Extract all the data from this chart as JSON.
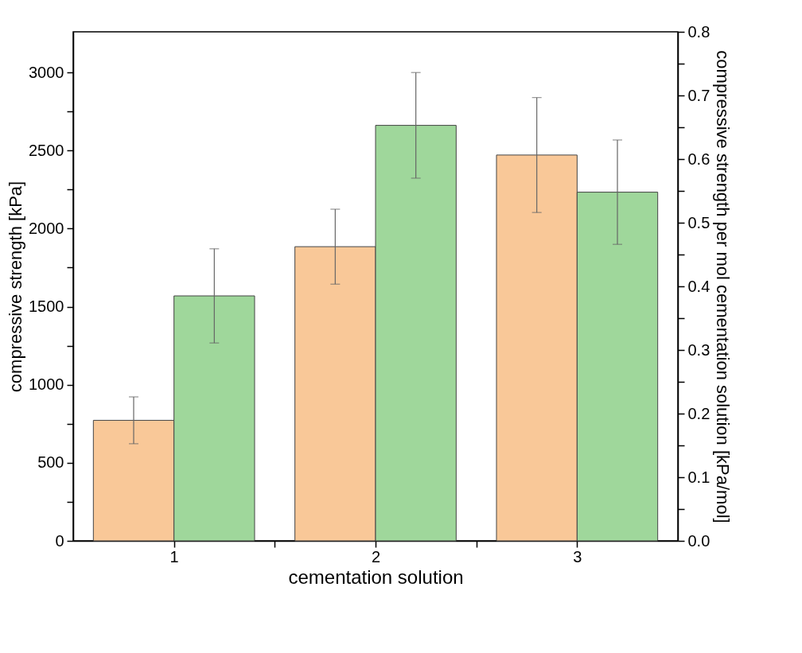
{
  "chart_data": {
    "type": "bar",
    "xlabel": "cementation solution",
    "ylabel": "compressive strength [kPa]",
    "y2label": "compressive strength per mol cementation solution [kPa/mol]",
    "x": [
      1,
      2,
      3
    ],
    "xlim": [
      0.5,
      3.5
    ],
    "xticks": [
      1,
      {
        "value": 1.5,
        "label": null
      },
      2,
      {
        "value": 2.5,
        "label": null
      },
      3
    ],
    "ylim": [
      0,
      3260
    ],
    "yticks": [
      0,
      {
        "value": 250,
        "label": null
      },
      500,
      {
        "value": 750,
        "label": null
      },
      1000,
      {
        "value": 1250,
        "label": null
      },
      1500,
      {
        "value": 1750,
        "label": null
      },
      2000,
      {
        "value": 2250,
        "label": null
      },
      2500,
      {
        "value": 2750,
        "label": null
      },
      3000
    ],
    "y2lim": [
      0,
      0.8
    ],
    "y2ticks": [
      {
        "value": 0,
        "label": "0.0"
      },
      {
        "value": 0.05,
        "label": null
      },
      0.1,
      {
        "value": 0.15,
        "label": null
      },
      0.2,
      {
        "value": 0.25,
        "label": null
      },
      0.3,
      {
        "value": 0.35,
        "label": null
      },
      0.4,
      {
        "value": 0.45,
        "label": null
      },
      0.5,
      {
        "value": 0.55,
        "label": null
      },
      0.6,
      {
        "value": 0.65,
        "label": null
      },
      0.7,
      {
        "value": 0.75,
        "label": null
      },
      0.8
    ],
    "grid": false,
    "series": [
      {
        "color": "#f9c898",
        "values": [
          772,
          1884,
          2471
        ],
        "errors": [
          150,
          240,
          368
        ]
      },
      {
        "color": "#9fd79b",
        "axis": "y2",
        "values": [
          0.385,
          0.653,
          0.548
        ],
        "errors": [
          0.074,
          0.083,
          0.082
        ]
      }
    ]
  }
}
